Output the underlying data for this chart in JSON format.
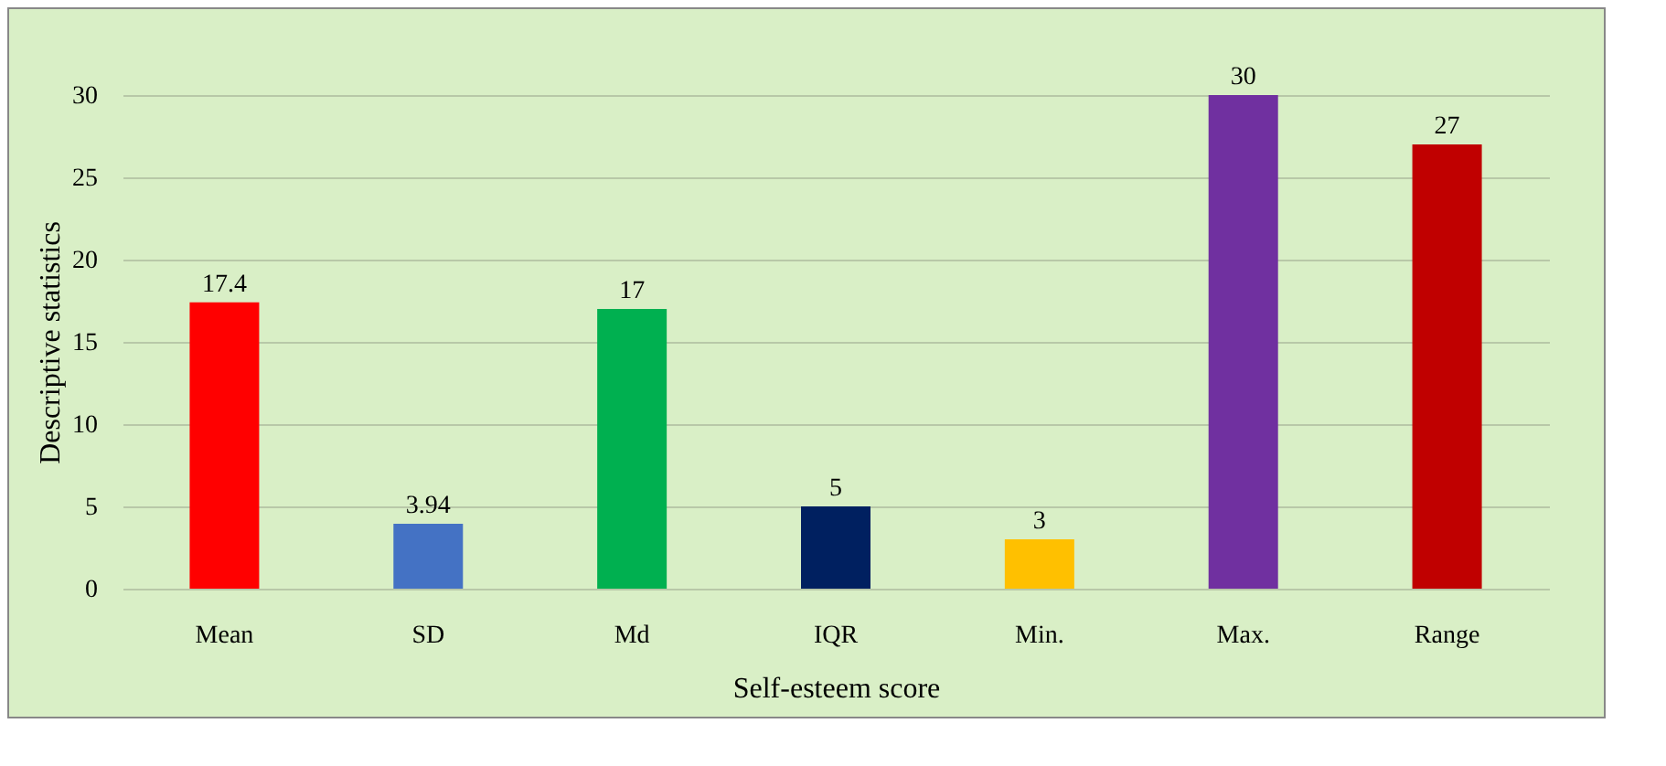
{
  "chart_data": {
    "type": "bar",
    "xlabel": "Self-esteem score",
    "ylabel": "Descriptive statistics",
    "categories": [
      "Mean",
      "SD",
      "Md",
      "IQR",
      "Min.",
      "Max.",
      "Range"
    ],
    "values": [
      17.4,
      3.94,
      17,
      5,
      3,
      30,
      27
    ],
    "colors": [
      "#ff0000",
      "#4472c4",
      "#00b050",
      "#002060",
      "#ffc000",
      "#7030a0",
      "#c00000"
    ],
    "ylim": [
      0,
      30
    ],
    "yticks": [
      0,
      5,
      10,
      15,
      20,
      25,
      30
    ],
    "grid": true,
    "data_labels": true
  }
}
